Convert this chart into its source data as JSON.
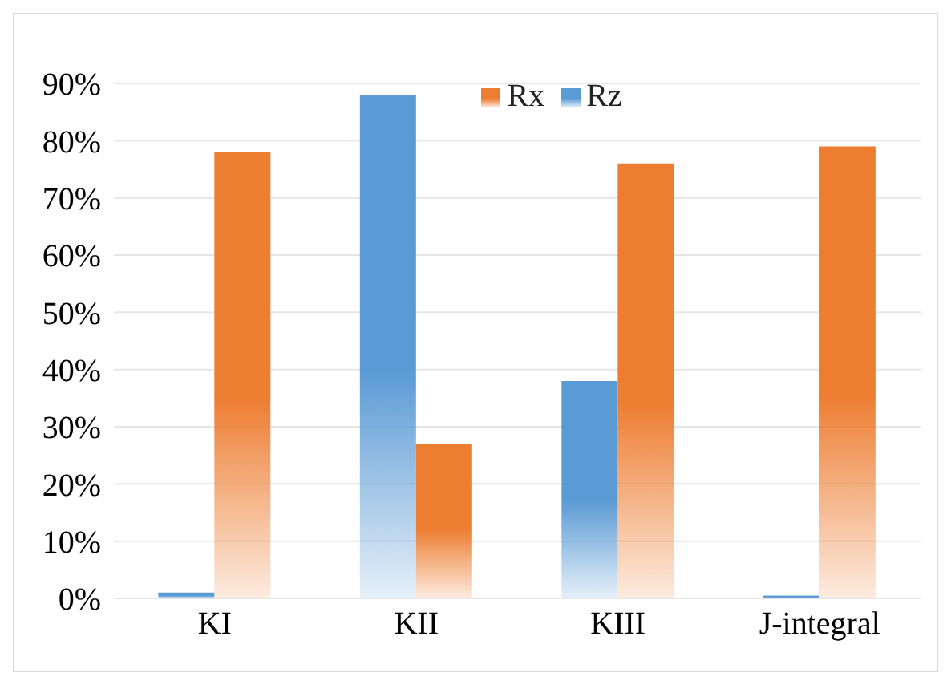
{
  "chart_data": {
    "type": "bar",
    "categories": [
      "KI",
      "KII",
      "KIII",
      "J-integral"
    ],
    "series": [
      {
        "name": "Rz",
        "color": "#5b9bd5",
        "values": [
          1,
          88,
          38,
          0.5
        ]
      },
      {
        "name": "Rx",
        "color": "#ed7d31",
        "values": [
          78,
          27,
          76,
          79
        ]
      }
    ],
    "ylim": [
      0,
      90
    ],
    "yticks": [
      {
        "value": 0,
        "label": "0%"
      },
      {
        "value": 10,
        "label": "10%"
      },
      {
        "value": 20,
        "label": "20%"
      },
      {
        "value": 30,
        "label": "30%"
      },
      {
        "value": 40,
        "label": "40%"
      },
      {
        "value": 50,
        "label": "50%"
      },
      {
        "value": 60,
        "label": "60%"
      },
      {
        "value": 70,
        "label": "70%"
      },
      {
        "value": 80,
        "label": "80%"
      },
      {
        "value": 90,
        "label": "90%"
      }
    ],
    "grid": "y",
    "legend": "top"
  }
}
